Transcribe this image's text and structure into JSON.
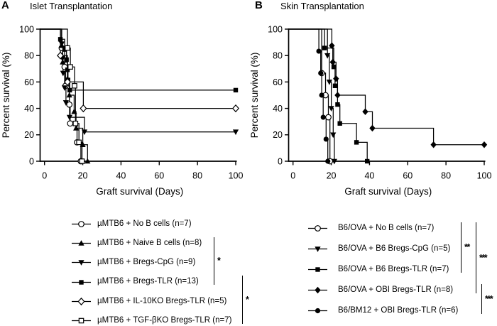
{
  "figure": {
    "background": "#ffffff",
    "ink_color": "#000000",
    "description": "Kaplan-Meier graft survival curves, two panels"
  },
  "chart_data": [
    {
      "type": "line",
      "subtype": "kaplan-meier-step",
      "panel_label": "A",
      "title": "Islet Transplantation",
      "xlabel": "Graft survival (Days)",
      "ylabel": "Percent survival (%)",
      "xlim": [
        0,
        100
      ],
      "ylim": [
        0,
        100
      ],
      "xticks": [
        0,
        20,
        40,
        60,
        80,
        100
      ],
      "yticks": [
        0,
        20,
        40,
        60,
        80,
        100
      ],
      "grid": false,
      "legend_position": "below",
      "series": [
        {
          "name": "µMTB6 + No B cells (n=7)",
          "marker": "circle-open",
          "color": "#000000",
          "steps": [
            [
              9,
              85.7
            ],
            [
              10.5,
              71.4
            ],
            [
              11,
              57.1
            ],
            [
              13,
              42.9
            ],
            [
              13.4,
              28.6
            ],
            [
              17,
              14.3
            ],
            [
              19,
              0
            ]
          ],
          "plateau_to_day_100": false
        },
        {
          "name": "µMTB6 + Naive B cells (n=8)",
          "marker": "triangle-up-filled",
          "color": "#000000",
          "steps": [
            [
              9,
              87.5
            ],
            [
              9.5,
              75
            ],
            [
              12,
              62.5
            ],
            [
              13,
              50
            ],
            [
              15.5,
              37.5
            ],
            [
              16.5,
              25
            ],
            [
              20,
              12.5
            ],
            [
              22.5,
              0
            ]
          ],
          "plateau_to_day_100": false
        },
        {
          "name": "µMTB6 + Bregs-CpG (n=9)",
          "marker": "triangle-down-filled",
          "color": "#000000",
          "steps": [
            [
              9,
              88.9
            ],
            [
              9.4,
              77.8
            ],
            [
              9.7,
              66.7
            ],
            [
              10.5,
              55.6
            ],
            [
              11.2,
              44.4
            ],
            [
              13.1,
              33.3
            ],
            [
              20.9,
              22.2
            ]
          ],
          "plateau_to_day_100": true
        },
        {
          "name": "µMTB6 + Bregs-TLR (n=13)",
          "marker": "square-filled",
          "color": "#000000",
          "steps": [
            [
              8.3,
              92.3
            ],
            [
              10.5,
              84.6
            ],
            [
              11.5,
              76.9
            ],
            [
              12,
              69.2
            ],
            [
              12.3,
              61.5
            ],
            [
              13.2,
              53.8
            ]
          ],
          "plateau_to_day_100": true
        },
        {
          "name": "µMTB6 + IL-10KO Bregs-TLR (n=5)",
          "marker": "diamond-open",
          "color": "#000000",
          "steps": [
            [
              8.3,
              80
            ],
            [
              12,
              60
            ],
            [
              20.3,
              40
            ]
          ],
          "plateau_to_day_100": true
        },
        {
          "name": "µMTB6 + TGF-βKO Bregs-TLR (n=7)",
          "marker": "square-open",
          "color": "#000000",
          "steps": [
            [
              12,
              85.7
            ],
            [
              13.5,
              71.4
            ],
            [
              15.7,
              57.1
            ],
            [
              16.2,
              28.6
            ],
            [
              18,
              14.3
            ],
            [
              19.6,
              0
            ]
          ],
          "plateau_to_day_100": false
        }
      ],
      "significance_brackets": [
        {
          "from_row": 2,
          "to_row": 4,
          "label": "*",
          "tier": 0
        },
        {
          "from_row": 4,
          "to_row": 6,
          "label": "*",
          "tier": 1
        }
      ]
    },
    {
      "type": "line",
      "subtype": "kaplan-meier-step",
      "panel_label": "B",
      "title": "Skin Transplantation",
      "xlabel": "Graft survival (Days)",
      "ylabel": "Percent survival (%)",
      "xlim": [
        0,
        100
      ],
      "ylim": [
        0,
        100
      ],
      "xticks": [
        0,
        20,
        40,
        60,
        80,
        100
      ],
      "yticks": [
        0,
        20,
        40,
        60,
        80,
        100
      ],
      "grid": false,
      "legend_position": "below",
      "series": [
        {
          "name": "B6/OVA + No B cells (n=7)",
          "marker": "circle-open",
          "color": "#000000",
          "steps": [
            [
              15,
              66.7
            ],
            [
              17,
              50
            ],
            [
              18.5,
              33.3
            ],
            [
              19.3,
              0
            ]
          ],
          "plateau_to_day_100": false
        },
        {
          "name": "B6/OVA + B6 Bregs-CpG (n=5)",
          "marker": "triangle-down-filled",
          "color": "#000000",
          "steps": [
            [
              18,
              80
            ],
            [
              19,
              60
            ],
            [
              20,
              40
            ],
            [
              21,
              20
            ],
            [
              21.6,
              0
            ]
          ],
          "plateau_to_day_100": false
        },
        {
          "name": "B6/OVA + B6 Bregs-TLR (n=7)",
          "marker": "square-filled",
          "color": "#000000",
          "steps": [
            [
              16.5,
              85.7
            ],
            [
              21.3,
              71.4
            ],
            [
              22,
              57.1
            ],
            [
              23.3,
              42.9
            ],
            [
              24.5,
              28.6
            ],
            [
              33.2,
              14.3
            ],
            [
              38.8,
              0
            ]
          ],
          "plateau_to_day_100": false
        },
        {
          "name": "B6/OVA + OBI Bregs-TLR (n=8)",
          "marker": "diamond-filled",
          "color": "#000000",
          "steps": [
            [
              20.3,
              87.5
            ],
            [
              20.8,
              75
            ],
            [
              22.5,
              62.5
            ],
            [
              23.3,
              50
            ],
            [
              37.8,
              37.5
            ],
            [
              41.5,
              25
            ],
            [
              73.5,
              12.5
            ]
          ],
          "plateau_to_day_100": true
        },
        {
          "name": "B6/BM12 + OBI Bregs-TLR (n=6)",
          "marker": "circle-filled",
          "color": "#000000",
          "steps": [
            [
              13.5,
              83.3
            ],
            [
              14.5,
              66.7
            ],
            [
              15,
              50
            ],
            [
              15.8,
              33.3
            ],
            [
              17.3,
              16.7
            ],
            [
              18.2,
              0
            ]
          ],
          "plateau_to_day_100": false
        }
      ],
      "significance_brackets": [
        {
          "from_row": 1,
          "to_row": 3,
          "label": "**",
          "tier": 0
        },
        {
          "from_row": 1,
          "to_row": 4,
          "label": "***",
          "tier": 1
        },
        {
          "from_row": 4,
          "to_row": 5,
          "label": "***",
          "tier": 2
        }
      ]
    }
  ]
}
